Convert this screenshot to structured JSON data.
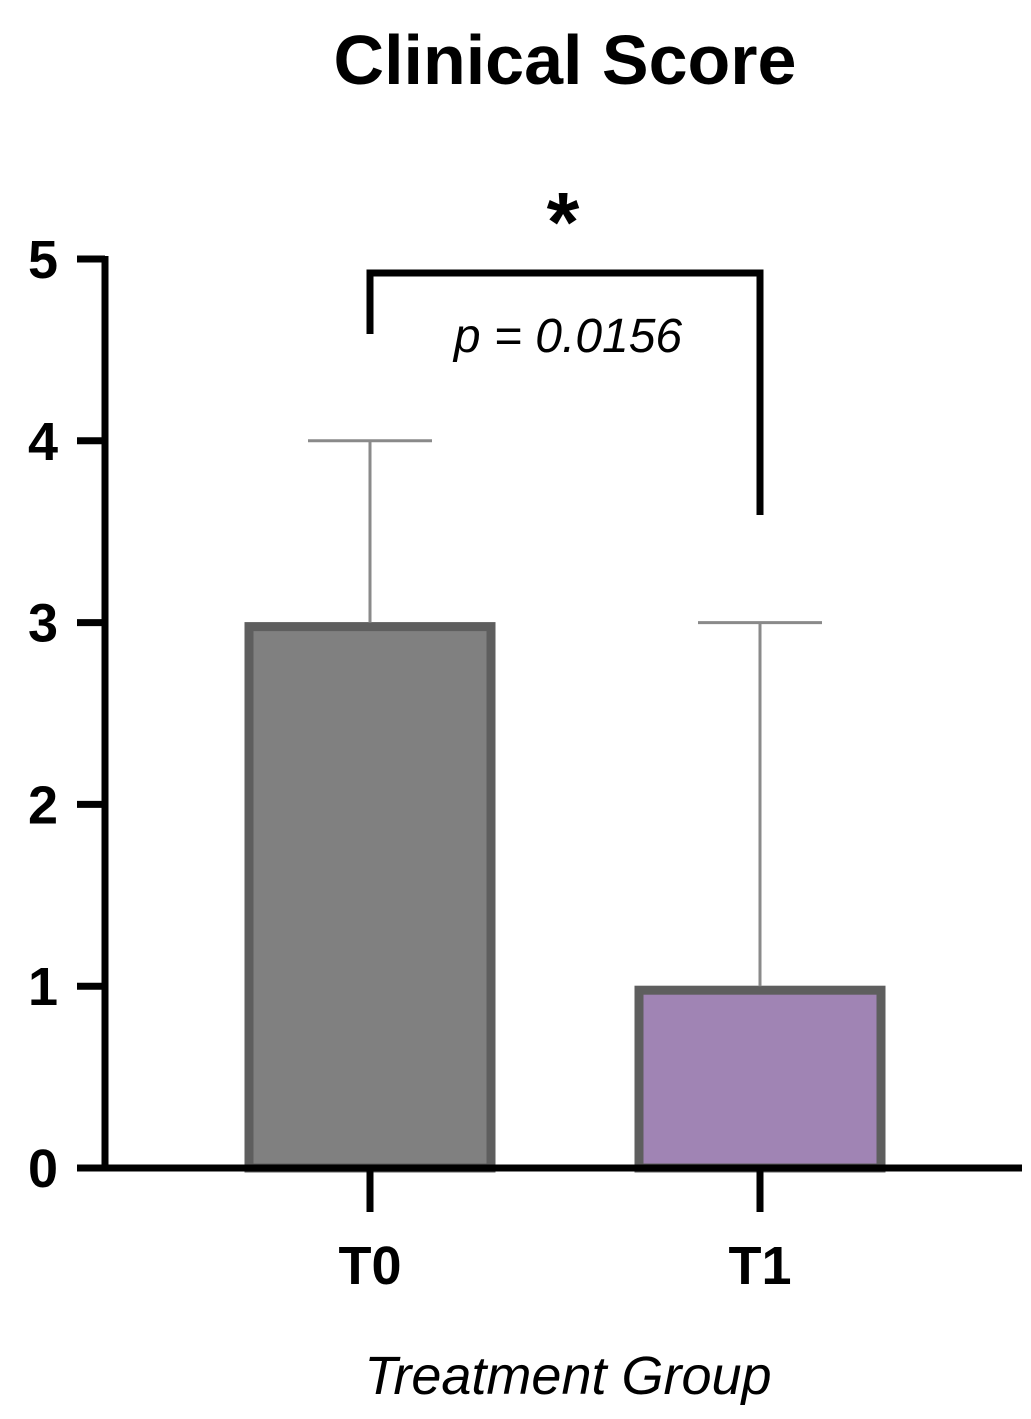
{
  "chart_data": {
    "type": "bar",
    "title": "Clinical Score",
    "xlabel": "Treatment Group",
    "ylabel": "",
    "categories": [
      "T0",
      "T1"
    ],
    "values": [
      3,
      1
    ],
    "error_upper": [
      4,
      3
    ],
    "bar_colors": [
      "#808080",
      "#a084b4"
    ],
    "bar_edge_color": "#5e5e5e",
    "error_bar_color": "#8a8a8a",
    "ylim": [
      0,
      5
    ],
    "yticks": [
      "0",
      "1",
      "2",
      "3",
      "4",
      "5"
    ],
    "grid": false,
    "legend": "none",
    "annotation": {
      "star": "*",
      "p_text": "p = 0.0156",
      "between": [
        "T0",
        "T1"
      ]
    }
  }
}
